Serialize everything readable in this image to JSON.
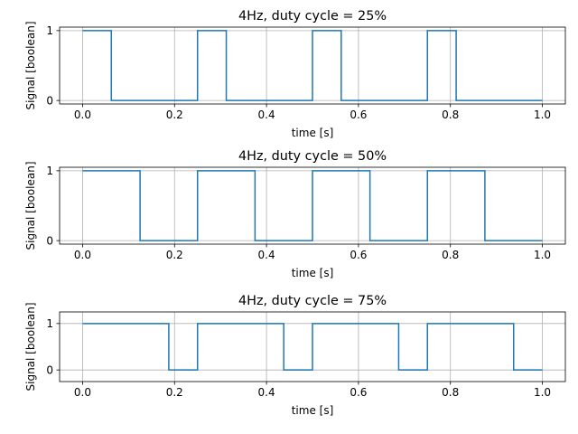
{
  "colors": {
    "signal": "#1f77b4",
    "grid": "#b0b0b0",
    "axes": "#000000"
  },
  "chart_data": [
    {
      "type": "line",
      "title": "4Hz, duty cycle = 25%",
      "xlabel": "time [s]",
      "ylabel": "Signal [boolean]",
      "xlim": [
        -0.05,
        1.05
      ],
      "ylim": [
        -0.05,
        1.05
      ],
      "xticks": [
        "0.0",
        "0.2",
        "0.4",
        "0.6",
        "0.8",
        "1.0"
      ],
      "yticks": [
        "0",
        "1"
      ],
      "grid": true,
      "series": [
        {
          "x": [
            0,
            0.0625,
            0.0625,
            0.25,
            0.25,
            0.3125,
            0.3125,
            0.5,
            0.5,
            0.5625,
            0.5625,
            0.75,
            0.75,
            0.8125,
            0.8125,
            1.0
          ],
          "y": [
            1,
            1,
            0,
            0,
            1,
            1,
            0,
            0,
            1,
            1,
            0,
            0,
            1,
            1,
            0,
            0
          ]
        }
      ]
    },
    {
      "type": "line",
      "title": "4Hz, duty cycle = 50%",
      "xlabel": "time [s]",
      "ylabel": "Signal [boolean]",
      "xlim": [
        -0.05,
        1.05
      ],
      "ylim": [
        -0.05,
        1.05
      ],
      "xticks": [
        "0.0",
        "0.2",
        "0.4",
        "0.6",
        "0.8",
        "1.0"
      ],
      "yticks": [
        "0",
        "1"
      ],
      "grid": true,
      "series": [
        {
          "x": [
            0,
            0.125,
            0.125,
            0.25,
            0.25,
            0.375,
            0.375,
            0.5,
            0.5,
            0.625,
            0.625,
            0.75,
            0.75,
            0.875,
            0.875,
            1.0
          ],
          "y": [
            1,
            1,
            0,
            0,
            1,
            1,
            0,
            0,
            1,
            1,
            0,
            0,
            1,
            1,
            0,
            0
          ]
        }
      ]
    },
    {
      "type": "line",
      "title": "4Hz, duty cycle = 75%",
      "xlabel": "time [s]",
      "ylabel": "Signal [boolean]",
      "xlim": [
        -0.05,
        1.05
      ],
      "ylim": [
        -0.25,
        1.25
      ],
      "xticks": [
        "0.0",
        "0.2",
        "0.4",
        "0.6",
        "0.8",
        "1.0"
      ],
      "yticks": [
        "0",
        "1"
      ],
      "grid": true,
      "series": [
        {
          "x": [
            0,
            0.1875,
            0.1875,
            0.25,
            0.25,
            0.4375,
            0.4375,
            0.5,
            0.5,
            0.6875,
            0.6875,
            0.75,
            0.75,
            0.9375,
            0.9375,
            1.0
          ],
          "y": [
            1,
            1,
            0,
            0,
            1,
            1,
            0,
            0,
            1,
            1,
            0,
            0,
            1,
            1,
            0,
            0
          ]
        }
      ]
    }
  ]
}
